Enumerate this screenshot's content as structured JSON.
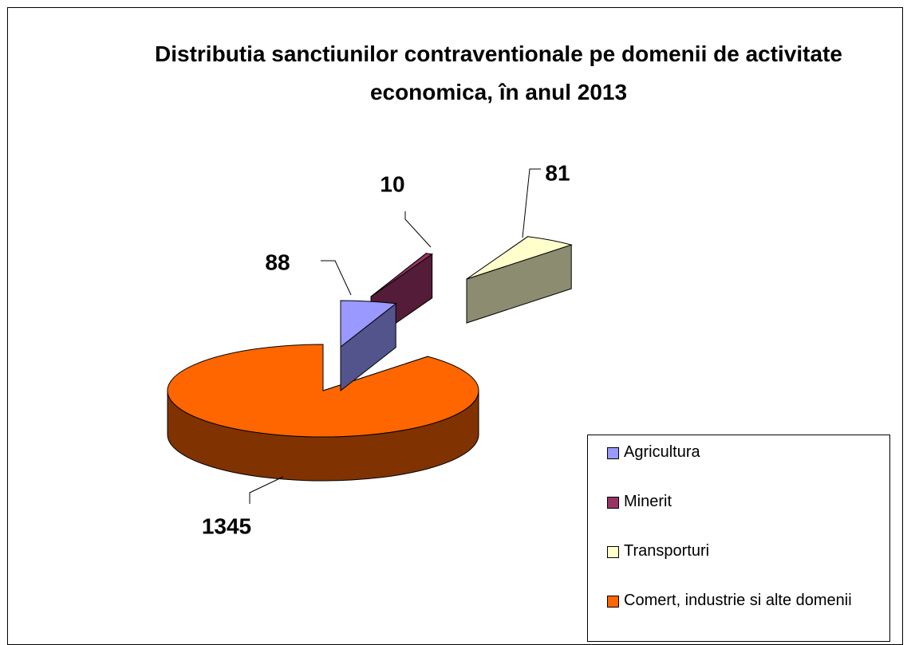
{
  "chart_data": {
    "type": "pie",
    "title": "Distributia sanctiunilor contraventionale pe domenii de activitate economica, în anul 2013",
    "categories": [
      "Agricultura",
      "Minerit",
      "Transporturi",
      "Comert, industrie si alte domenii"
    ],
    "values": [
      88,
      10,
      81,
      1345
    ],
    "colors": [
      "#9999ff",
      "#993366",
      "#ffffcc",
      "#ff6600"
    ],
    "legend": "bottom-right"
  }
}
